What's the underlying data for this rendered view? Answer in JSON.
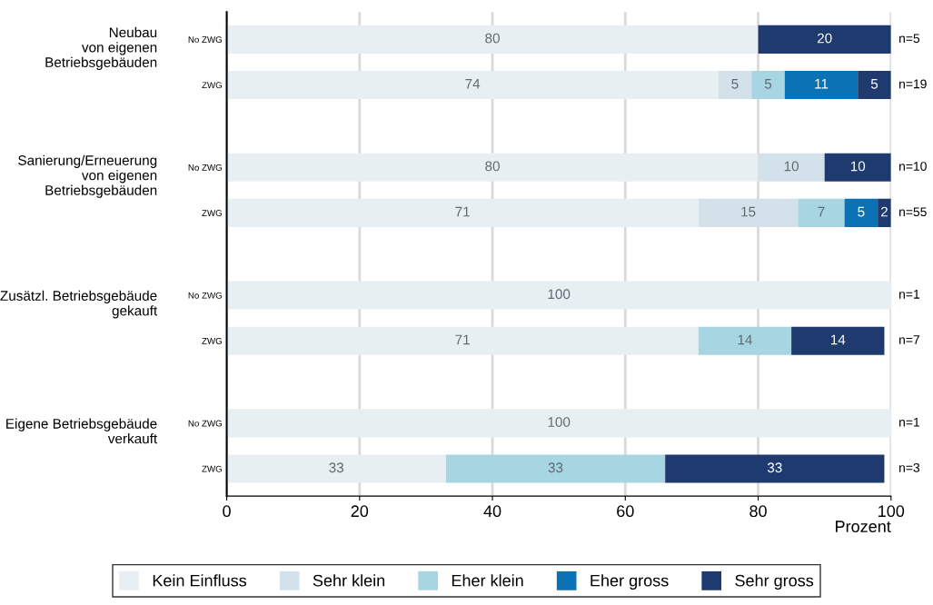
{
  "chart_data": {
    "type": "bar",
    "orientation": "horizontal",
    "stacked": true,
    "data_labels": true,
    "categories": [
      "No ZWG",
      "ZWG",
      "No ZWG",
      "ZWG",
      "No ZWG",
      "ZWG",
      "No ZWG",
      "ZWG"
    ],
    "series": [
      {
        "name": "Kein Einfluss",
        "color": "#e8eff3",
        "values": [
          80,
          74,
          80,
          71,
          100,
          71,
          100,
          33
        ]
      },
      {
        "name": "Sehr klein",
        "color": "#d3e2ea",
        "values": [
          null,
          5,
          10,
          15,
          null,
          null,
          null,
          null
        ]
      },
      {
        "name": "Eher klein",
        "color": "#a8d5e2",
        "values": [
          null,
          5,
          null,
          7,
          null,
          14,
          null,
          33
        ]
      },
      {
        "name": "Eher gross",
        "color": "#0a72b5",
        "values": [
          null,
          11,
          null,
          5,
          null,
          null,
          null,
          null
        ]
      },
      {
        "name": "Sehr gross",
        "color": "#1f3a6e",
        "values": [
          20,
          5,
          10,
          2,
          null,
          14,
          null,
          33
        ]
      }
    ],
    "xlim": [
      0,
      100
    ],
    "xticks": [
      0,
      20,
      40,
      60,
      80,
      100
    ],
    "xlabel": "Prozent",
    "grid": "x",
    "legend": "bottom",
    "annotations": [
      "Neubau\nvon eigenen\nBetriebsgebäuden",
      "Sanierung/Erneuerung\nvon eigenen\nBetriebsgebäuden",
      "Zusätzl. Betriebsgebäude\ngekauft",
      "Eigene Betriebsgebäude\nverkauft",
      "n=5",
      "n=19",
      "n=10",
      "n=55",
      "n=1",
      "n=7",
      "n=1",
      "n=3"
    ]
  }
}
